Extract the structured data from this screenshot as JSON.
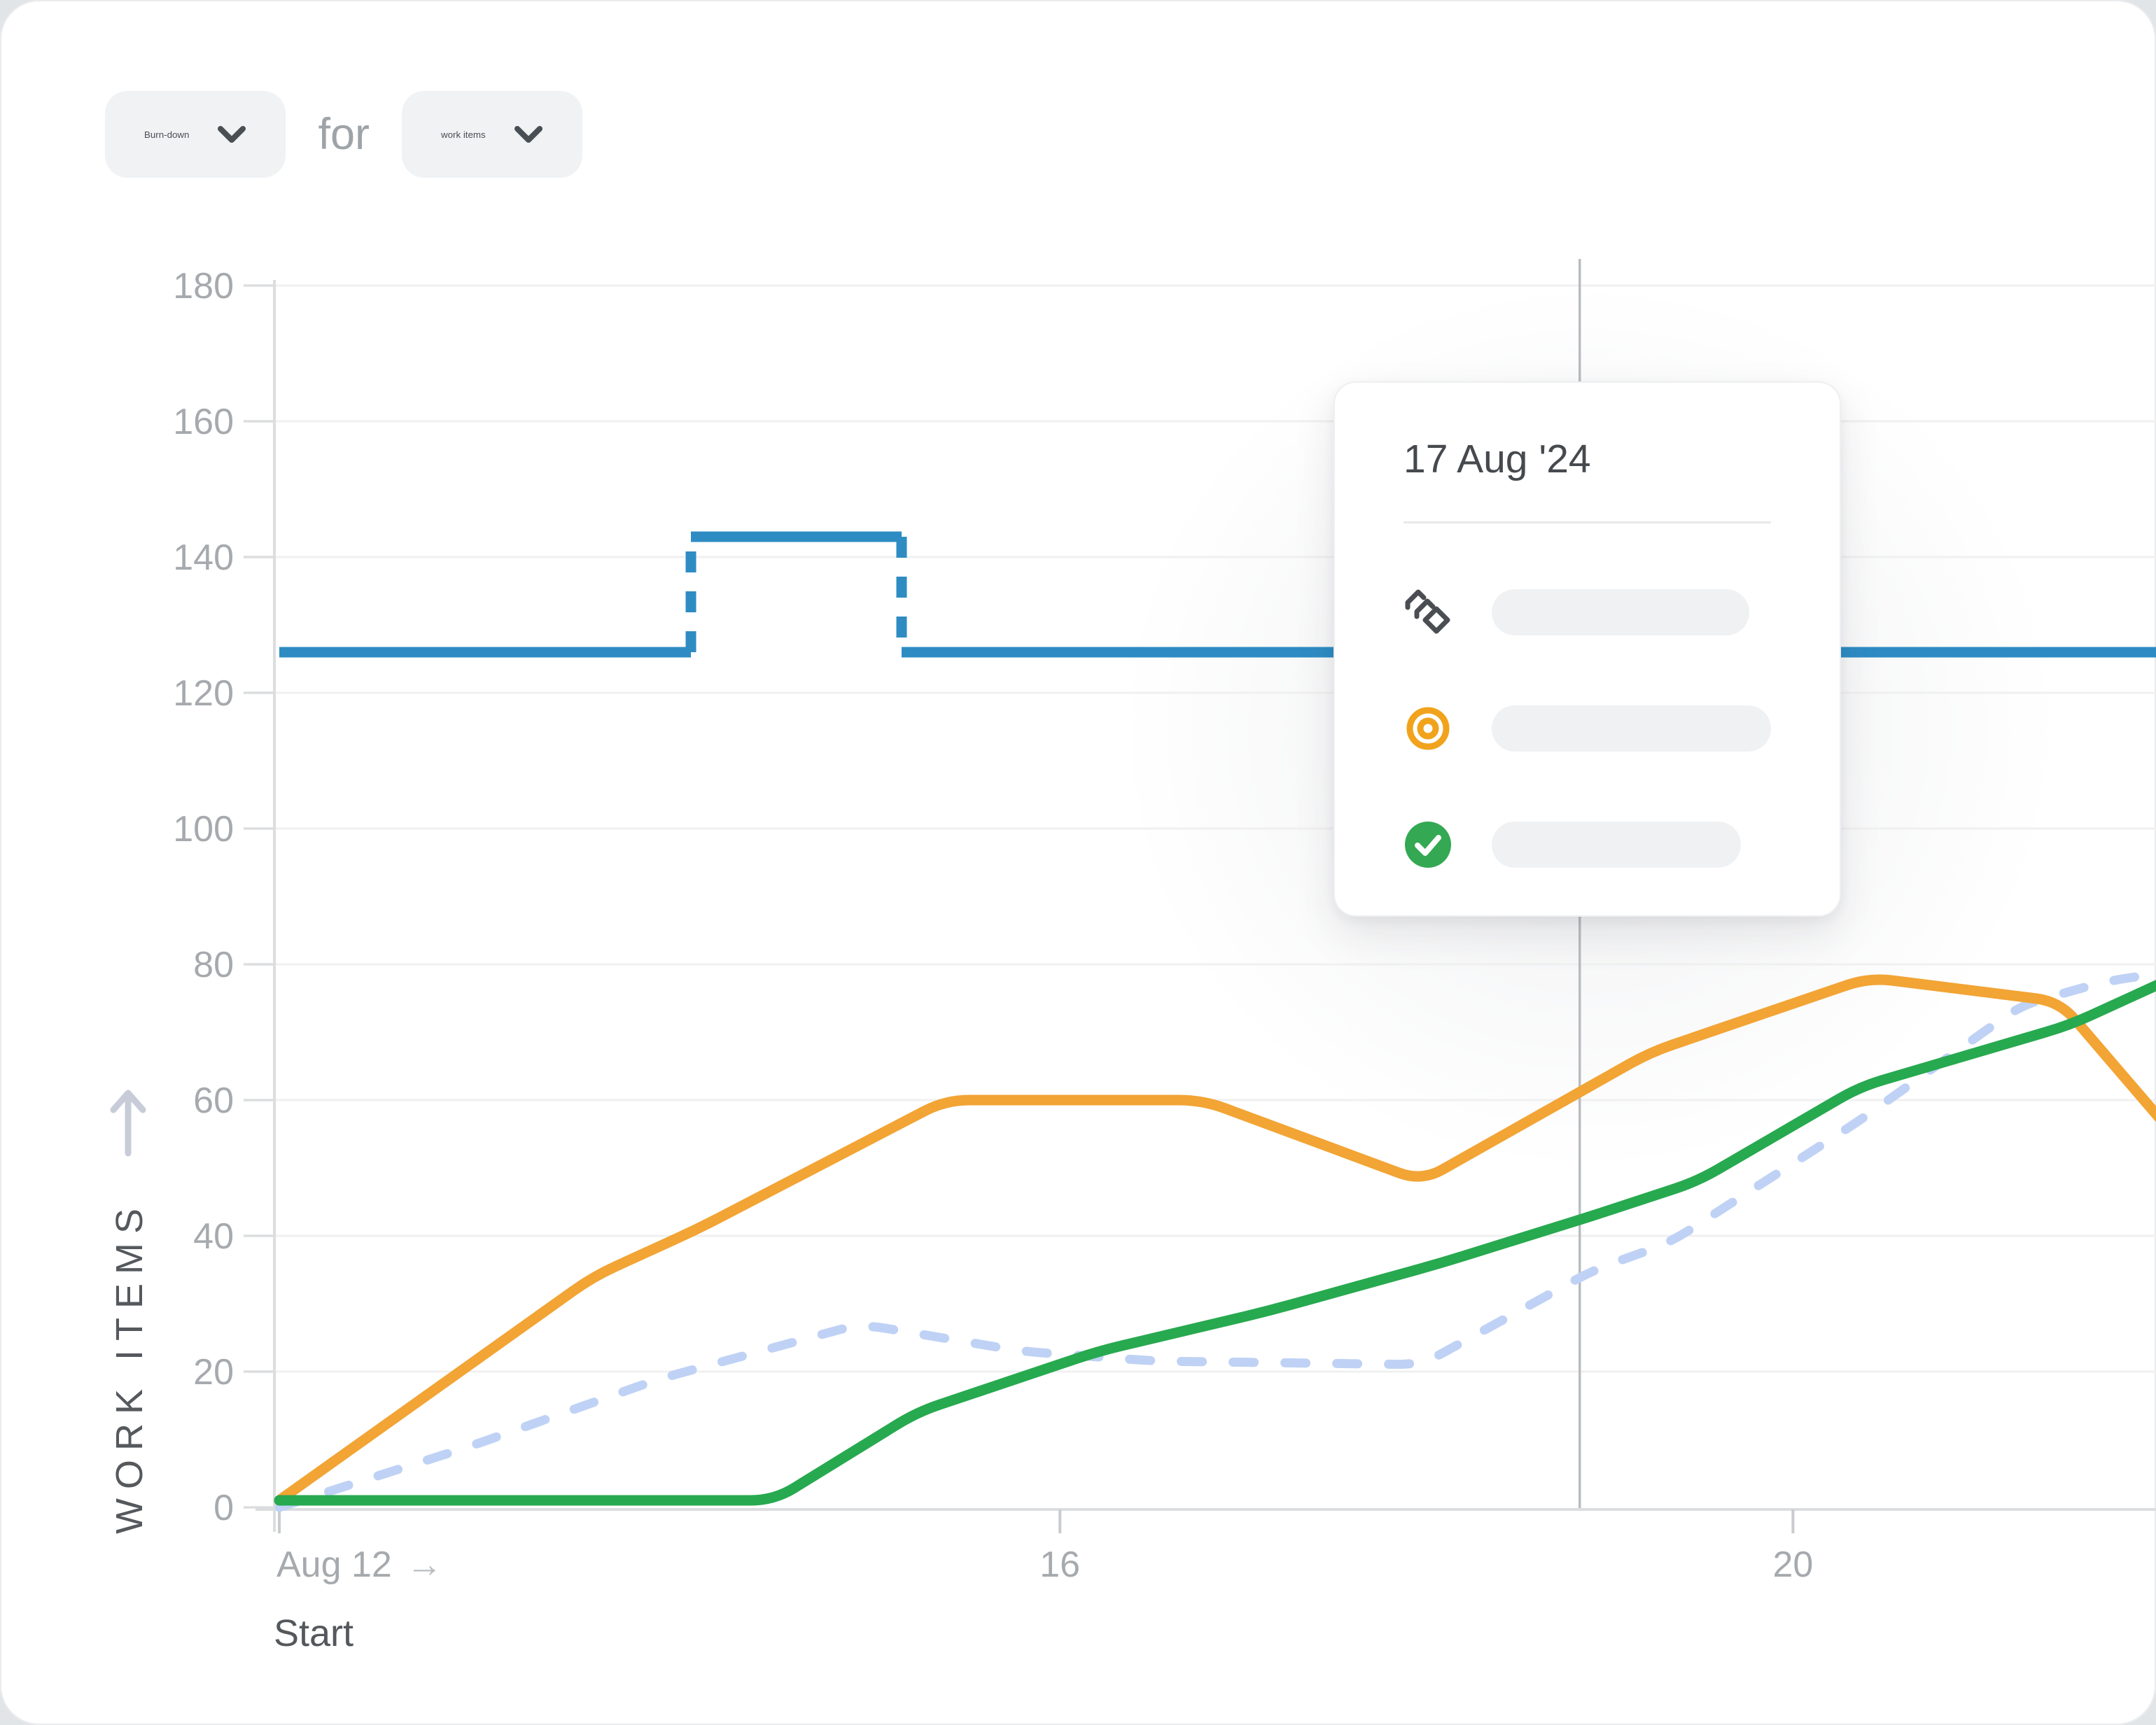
{
  "controls": {
    "metric_label": "Burn-down",
    "connector": "for",
    "scope_label": "work items"
  },
  "tooltip": {
    "date": "17 Aug '24",
    "rows": [
      {
        "icon": "layers-icon",
        "series": "scope"
      },
      {
        "icon": "target-icon",
        "series": "started"
      },
      {
        "icon": "check-circle-icon",
        "series": "completed"
      }
    ]
  },
  "icons": {
    "y_axis_up_arrow": "↑",
    "x_axis_right_arrow": "→"
  },
  "chart_data": {
    "type": "line",
    "title": "",
    "xlabel": "",
    "ylabel": "WORK ITEMS",
    "y_axis": {
      "min": 0,
      "max": 180,
      "step": 20
    },
    "x_axis": {
      "start_label": "Aug 12",
      "start_sublabel": "Start",
      "ticks": [
        {
          "label": "16",
          "day": 4.1
        },
        {
          "label": "20",
          "day": 7.95
        }
      ],
      "range_days": [
        0,
        10
      ]
    },
    "grid": true,
    "legend": "none",
    "crosshair": {
      "day": 6.83,
      "date": "17 Aug '24"
    },
    "series": [
      {
        "name": "guideline",
        "style": "dashed",
        "color": "#BFD2F5",
        "points": [
          [
            0,
            0
          ],
          [
            1.0,
            9
          ],
          [
            2.0,
            19
          ],
          [
            3.05,
            27
          ],
          [
            3.9,
            23
          ],
          [
            4.6,
            21.5
          ],
          [
            6.0,
            21
          ],
          [
            6.9,
            35
          ],
          [
            7.3,
            39
          ],
          [
            8.3,
            57
          ],
          [
            9.15,
            74
          ],
          [
            9.6,
            77.5
          ],
          [
            9.95,
            79
          ]
        ]
      },
      {
        "name": "started",
        "style": "solid",
        "color": "#F2A434",
        "points": [
          [
            0,
            1
          ],
          [
            1.65,
            34
          ],
          [
            2.2,
            41
          ],
          [
            3.5,
            60
          ],
          [
            4.85,
            60
          ],
          [
            6.0,
            48
          ],
          [
            7.2,
            67
          ],
          [
            8.35,
            78
          ],
          [
            9.35,
            74.5
          ],
          [
            9.95,
            55
          ]
        ]
      },
      {
        "name": "completed",
        "style": "solid",
        "color": "#27A94F",
        "points": [
          [
            0,
            1
          ],
          [
            2.6,
            1
          ],
          [
            3.35,
            14
          ],
          [
            4.3,
            23
          ],
          [
            5.2,
            29
          ],
          [
            6.1,
            36
          ],
          [
            6.9,
            43
          ],
          [
            7.45,
            48
          ],
          [
            8.3,
            62
          ],
          [
            9.4,
            71
          ],
          [
            9.95,
            78
          ]
        ]
      },
      {
        "name": "scope",
        "style": "step",
        "color": "#2E8CC3",
        "points": [
          [
            0,
            126
          ],
          [
            2.16,
            126
          ],
          [
            2.16,
            143
          ],
          [
            3.27,
            143
          ],
          [
            3.27,
            126
          ],
          [
            10,
            126
          ]
        ]
      }
    ],
    "colors": {
      "gridline": "#F0F0F1",
      "axis": "#DBDDDF",
      "tick": "#C9CCCF",
      "tick_label": "#A6AAAE",
      "start_sublabel": "#54585C",
      "crosshair": "#B9BCBF"
    }
  }
}
